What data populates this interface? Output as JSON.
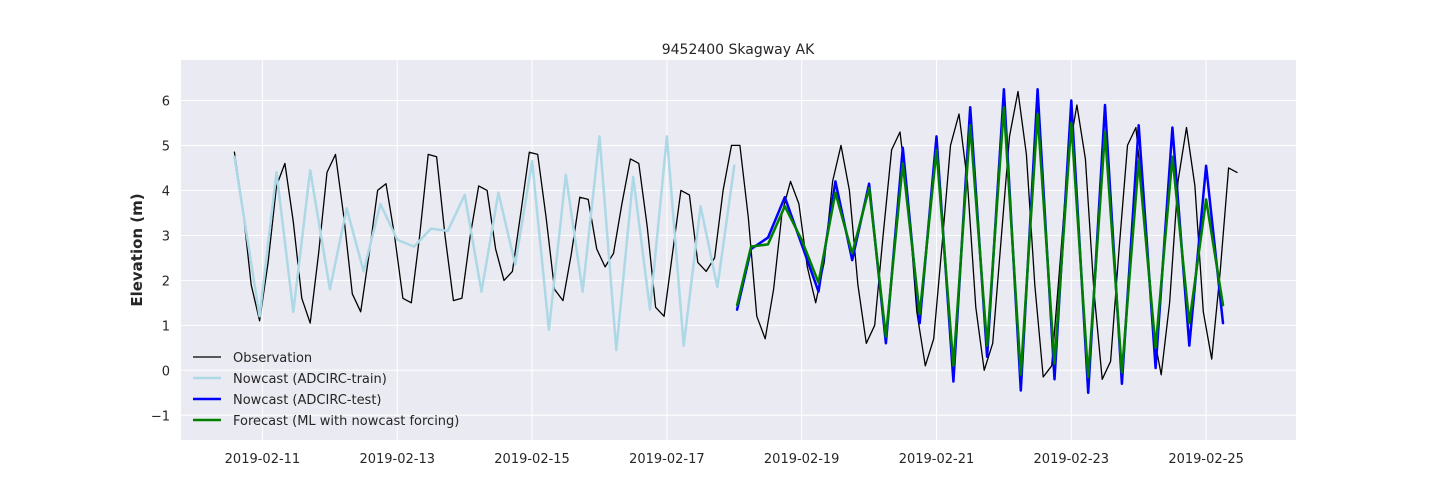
{
  "chart_data": {
    "type": "line",
    "title": "9452400 Skagway AK",
    "ylabel": "Elevation (m)",
    "xlabel": "",
    "x_unit": "datetime",
    "xlim": [
      "2019-02-09T19:00",
      "2019-02-26T08:00"
    ],
    "ylim": [
      -1.55,
      6.9
    ],
    "x_ticks": [
      "2019-02-11",
      "2019-02-13",
      "2019-02-15",
      "2019-02-17",
      "2019-02-19",
      "2019-02-21",
      "2019-02-23",
      "2019-02-25"
    ],
    "y_ticks": [
      -1,
      0,
      1,
      2,
      3,
      4,
      5,
      6
    ],
    "grid": true,
    "legend_location": "lower left",
    "series": [
      {
        "name": "Observation",
        "color": "#000000",
        "linewidth": 1.3,
        "points": [
          [
            "2019-02-10T14:00",
            4.85
          ],
          [
            "2019-02-10T17:00",
            3.6
          ],
          [
            "2019-02-10T20:00",
            1.9
          ],
          [
            "2019-02-10T23:00",
            1.1
          ],
          [
            "2019-02-11T02:00",
            2.4
          ],
          [
            "2019-02-11T05:00",
            4.1
          ],
          [
            "2019-02-11T08:00",
            4.6
          ],
          [
            "2019-02-11T11:00",
            3.3
          ],
          [
            "2019-02-11T14:00",
            1.6
          ],
          [
            "2019-02-11T17:00",
            1.05
          ],
          [
            "2019-02-11T20:00",
            2.6
          ],
          [
            "2019-02-11T23:00",
            4.4
          ],
          [
            "2019-02-12T02:00",
            4.8
          ],
          [
            "2019-02-12T05:00",
            3.4
          ],
          [
            "2019-02-12T08:00",
            1.7
          ],
          [
            "2019-02-12T11:00",
            1.3
          ],
          [
            "2019-02-12T14:00",
            2.6
          ],
          [
            "2019-02-12T17:00",
            4.0
          ],
          [
            "2019-02-12T20:00",
            4.15
          ],
          [
            "2019-02-12T23:00",
            3.0
          ],
          [
            "2019-02-13T02:00",
            1.6
          ],
          [
            "2019-02-13T05:00",
            1.5
          ],
          [
            "2019-02-13T08:00",
            3.0
          ],
          [
            "2019-02-13T11:00",
            4.8
          ],
          [
            "2019-02-13T14:00",
            4.75
          ],
          [
            "2019-02-13T17:00",
            3.0
          ],
          [
            "2019-02-13T20:00",
            1.55
          ],
          [
            "2019-02-13T23:00",
            1.6
          ],
          [
            "2019-02-14T02:00",
            3.0
          ],
          [
            "2019-02-14T05:00",
            4.1
          ],
          [
            "2019-02-14T08:00",
            4.0
          ],
          [
            "2019-02-14T11:00",
            2.7
          ],
          [
            "2019-02-14T14:00",
            2.0
          ],
          [
            "2019-02-14T17:00",
            2.2
          ],
          [
            "2019-02-14T20:00",
            3.5
          ],
          [
            "2019-02-14T23:00",
            4.85
          ],
          [
            "2019-02-15T02:00",
            4.8
          ],
          [
            "2019-02-15T05:00",
            3.4
          ],
          [
            "2019-02-15T08:00",
            1.8
          ],
          [
            "2019-02-15T11:00",
            1.55
          ],
          [
            "2019-02-15T14:00",
            2.6
          ],
          [
            "2019-02-15T17:00",
            3.85
          ],
          [
            "2019-02-15T20:00",
            3.8
          ],
          [
            "2019-02-15T23:00",
            2.7
          ],
          [
            "2019-02-16T02:00",
            2.3
          ],
          [
            "2019-02-16T05:00",
            2.6
          ],
          [
            "2019-02-16T08:00",
            3.7
          ],
          [
            "2019-02-16T11:00",
            4.7
          ],
          [
            "2019-02-16T14:00",
            4.6
          ],
          [
            "2019-02-16T17:00",
            3.2
          ],
          [
            "2019-02-16T20:00",
            1.4
          ],
          [
            "2019-02-16T23:00",
            1.2
          ],
          [
            "2019-02-17T02:00",
            2.6
          ],
          [
            "2019-02-17T05:00",
            4.0
          ],
          [
            "2019-02-17T08:00",
            3.9
          ],
          [
            "2019-02-17T11:00",
            2.4
          ],
          [
            "2019-02-17T14:00",
            2.2
          ],
          [
            "2019-02-17T17:00",
            2.5
          ],
          [
            "2019-02-17T20:00",
            4.0
          ],
          [
            "2019-02-17T23:00",
            5.0
          ],
          [
            "2019-02-18T02:00",
            5.0
          ],
          [
            "2019-02-18T05:00",
            3.4
          ],
          [
            "2019-02-18T08:00",
            1.2
          ],
          [
            "2019-02-18T11:00",
            0.7
          ],
          [
            "2019-02-18T14:00",
            1.8
          ],
          [
            "2019-02-18T17:00",
            3.5
          ],
          [
            "2019-02-18T20:00",
            4.2
          ],
          [
            "2019-02-18T23:00",
            3.7
          ],
          [
            "2019-02-19T02:00",
            2.3
          ],
          [
            "2019-02-19T05:00",
            1.5
          ],
          [
            "2019-02-19T08:00",
            2.4
          ],
          [
            "2019-02-19T11:00",
            4.2
          ],
          [
            "2019-02-19T14:00",
            5.0
          ],
          [
            "2019-02-19T17:00",
            4.0
          ],
          [
            "2019-02-19T20:00",
            1.9
          ],
          [
            "2019-02-19T23:00",
            0.6
          ],
          [
            "2019-02-20T02:00",
            1.0
          ],
          [
            "2019-02-20T05:00",
            3.0
          ],
          [
            "2019-02-20T08:00",
            4.9
          ],
          [
            "2019-02-20T11:00",
            5.3
          ],
          [
            "2019-02-20T14:00",
            3.7
          ],
          [
            "2019-02-20T17:00",
            1.3
          ],
          [
            "2019-02-20T20:00",
            0.1
          ],
          [
            "2019-02-20T23:00",
            0.7
          ],
          [
            "2019-02-21T02:00",
            2.8
          ],
          [
            "2019-02-21T05:00",
            5.0
          ],
          [
            "2019-02-21T08:00",
            5.7
          ],
          [
            "2019-02-21T11:00",
            4.2
          ],
          [
            "2019-02-21T14:00",
            1.4
          ],
          [
            "2019-02-21T17:00",
            0.0
          ],
          [
            "2019-02-21T20:00",
            0.6
          ],
          [
            "2019-02-21T23:00",
            2.9
          ],
          [
            "2019-02-22T02:00",
            5.2
          ],
          [
            "2019-02-22T05:00",
            6.2
          ],
          [
            "2019-02-22T08:00",
            4.8
          ],
          [
            "2019-02-22T11:00",
            1.9
          ],
          [
            "2019-02-22T14:00",
            -0.15
          ],
          [
            "2019-02-22T17:00",
            0.1
          ],
          [
            "2019-02-22T20:00",
            2.4
          ],
          [
            "2019-02-22T23:00",
            4.8
          ],
          [
            "2019-02-23T02:00",
            5.9
          ],
          [
            "2019-02-23T05:00",
            4.7
          ],
          [
            "2019-02-23T08:00",
            1.8
          ],
          [
            "2019-02-23T11:00",
            -0.2
          ],
          [
            "2019-02-23T14:00",
            0.2
          ],
          [
            "2019-02-23T17:00",
            2.7
          ],
          [
            "2019-02-23T20:00",
            5.0
          ],
          [
            "2019-02-23T23:00",
            5.4
          ],
          [
            "2019-02-24T02:00",
            3.5
          ],
          [
            "2019-02-24T05:00",
            0.9
          ],
          [
            "2019-02-24T08:00",
            -0.1
          ],
          [
            "2019-02-24T11:00",
            1.5
          ],
          [
            "2019-02-24T14:00",
            4.2
          ],
          [
            "2019-02-24T17:00",
            5.4
          ],
          [
            "2019-02-24T20:00",
            4.1
          ],
          [
            "2019-02-24T23:00",
            1.3
          ],
          [
            "2019-02-25T02:00",
            0.25
          ],
          [
            "2019-02-25T05:00",
            2.2
          ],
          [
            "2019-02-25T08:00",
            4.5
          ],
          [
            "2019-02-25T11:00",
            4.4
          ]
        ]
      },
      {
        "name": "Nowcast (ADCIRC-train)",
        "color": "#add8e6",
        "linewidth": 2.5,
        "points": [
          [
            "2019-02-10T14:00",
            4.75
          ],
          [
            "2019-02-10T23:00",
            1.2
          ],
          [
            "2019-02-11T05:00",
            4.4
          ],
          [
            "2019-02-11T11:00",
            1.3
          ],
          [
            "2019-02-11T17:00",
            4.45
          ],
          [
            "2019-02-12T00:00",
            1.8
          ],
          [
            "2019-02-12T06:00",
            3.6
          ],
          [
            "2019-02-12T12:00",
            2.2
          ],
          [
            "2019-02-12T18:00",
            3.7
          ],
          [
            "2019-02-13T00:00",
            2.9
          ],
          [
            "2019-02-13T06:00",
            2.75
          ],
          [
            "2019-02-13T12:00",
            3.15
          ],
          [
            "2019-02-13T18:00",
            3.1
          ],
          [
            "2019-02-14T00:00",
            3.9
          ],
          [
            "2019-02-14T06:00",
            1.75
          ],
          [
            "2019-02-14T12:00",
            3.95
          ],
          [
            "2019-02-14T18:00",
            2.35
          ],
          [
            "2019-02-15T00:00",
            4.65
          ],
          [
            "2019-02-15T06:00",
            0.9
          ],
          [
            "2019-02-15T12:00",
            4.35
          ],
          [
            "2019-02-15T18:00",
            1.75
          ],
          [
            "2019-02-16T00:00",
            5.2
          ],
          [
            "2019-02-16T06:00",
            0.45
          ],
          [
            "2019-02-16T12:00",
            4.3
          ],
          [
            "2019-02-16T18:00",
            1.35
          ],
          [
            "2019-02-17T00:00",
            5.2
          ],
          [
            "2019-02-17T06:00",
            0.55
          ],
          [
            "2019-02-17T12:00",
            3.65
          ],
          [
            "2019-02-17T18:00",
            1.85
          ],
          [
            "2019-02-18T00:00",
            4.55
          ]
        ]
      },
      {
        "name": "Nowcast (ADCIRC-test)",
        "color": "#0000ff",
        "linewidth": 2.5,
        "points": [
          [
            "2019-02-18T01:00",
            1.35
          ],
          [
            "2019-02-18T06:00",
            2.7
          ],
          [
            "2019-02-18T12:00",
            2.95
          ],
          [
            "2019-02-18T18:00",
            3.85
          ],
          [
            "2019-02-19T00:00",
            2.8
          ],
          [
            "2019-02-19T06:00",
            1.75
          ],
          [
            "2019-02-19T12:00",
            4.2
          ],
          [
            "2019-02-19T18:00",
            2.45
          ],
          [
            "2019-02-20T00:00",
            4.15
          ],
          [
            "2019-02-20T06:00",
            0.6
          ],
          [
            "2019-02-20T12:00",
            4.95
          ],
          [
            "2019-02-20T18:00",
            1.05
          ],
          [
            "2019-02-21T00:00",
            5.2
          ],
          [
            "2019-02-21T06:00",
            -0.25
          ],
          [
            "2019-02-21T12:00",
            5.85
          ],
          [
            "2019-02-21T18:00",
            0.3
          ],
          [
            "2019-02-22T00:00",
            6.25
          ],
          [
            "2019-02-22T06:00",
            -0.45
          ],
          [
            "2019-02-22T12:00",
            6.25
          ],
          [
            "2019-02-22T18:00",
            -0.2
          ],
          [
            "2019-02-23T00:00",
            6.0
          ],
          [
            "2019-02-23T06:00",
            -0.5
          ],
          [
            "2019-02-23T12:00",
            5.9
          ],
          [
            "2019-02-23T18:00",
            -0.3
          ],
          [
            "2019-02-24T00:00",
            5.45
          ],
          [
            "2019-02-24T06:00",
            0.05
          ],
          [
            "2019-02-24T12:00",
            5.4
          ],
          [
            "2019-02-24T18:00",
            0.55
          ],
          [
            "2019-02-25T00:00",
            4.55
          ],
          [
            "2019-02-25T06:00",
            1.05
          ]
        ]
      },
      {
        "name": "Forecast (ML with nowcast forcing)",
        "color": "#008000",
        "linewidth": 2.5,
        "points": [
          [
            "2019-02-18T01:00",
            1.45
          ],
          [
            "2019-02-18T06:00",
            2.75
          ],
          [
            "2019-02-18T12:00",
            2.8
          ],
          [
            "2019-02-18T18:00",
            3.65
          ],
          [
            "2019-02-19T00:00",
            2.9
          ],
          [
            "2019-02-19T06:00",
            1.95
          ],
          [
            "2019-02-19T12:00",
            3.95
          ],
          [
            "2019-02-19T18:00",
            2.6
          ],
          [
            "2019-02-20T00:00",
            4.05
          ],
          [
            "2019-02-20T06:00",
            0.75
          ],
          [
            "2019-02-20T12:00",
            4.6
          ],
          [
            "2019-02-20T18:00",
            1.25
          ],
          [
            "2019-02-21T00:00",
            4.9
          ],
          [
            "2019-02-21T06:00",
            0.1
          ],
          [
            "2019-02-21T12:00",
            5.45
          ],
          [
            "2019-02-21T18:00",
            0.55
          ],
          [
            "2019-02-22T00:00",
            5.85
          ],
          [
            "2019-02-22T06:00",
            -0.1
          ],
          [
            "2019-02-22T12:00",
            5.7
          ],
          [
            "2019-02-22T18:00",
            0.15
          ],
          [
            "2019-02-23T00:00",
            5.5
          ],
          [
            "2019-02-23T06:00",
            -0.15
          ],
          [
            "2019-02-23T12:00",
            5.3
          ],
          [
            "2019-02-23T18:00",
            -0.05
          ],
          [
            "2019-02-24T00:00",
            4.65
          ],
          [
            "2019-02-24T06:00",
            0.5
          ],
          [
            "2019-02-24T12:00",
            4.75
          ],
          [
            "2019-02-24T18:00",
            1.05
          ],
          [
            "2019-02-25T00:00",
            3.8
          ],
          [
            "2019-02-25T06:00",
            1.45
          ]
        ]
      }
    ]
  }
}
